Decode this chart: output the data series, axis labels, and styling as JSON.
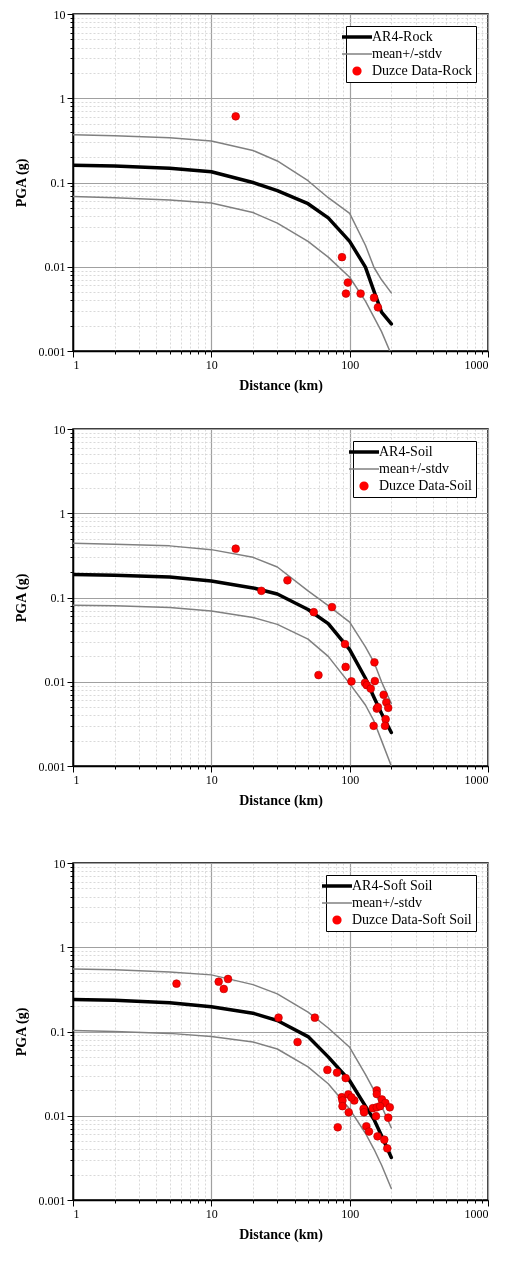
{
  "chart_data": [
    {
      "type": "scatter",
      "xlabel": "Distance (km)",
      "ylabel": "PGA (g)",
      "log": "xy",
      "grid": true,
      "legend": "top right",
      "xlim": [
        1,
        1000
      ],
      "ylim": [
        0.001,
        10
      ],
      "xticks": [
        1,
        {
          "value": 2,
          "label": null
        },
        {
          "value": 3,
          "label": null
        },
        {
          "value": 4,
          "label": null
        },
        {
          "value": 5,
          "label": null
        },
        {
          "value": 6,
          "label": null
        },
        {
          "value": 7,
          "label": null
        },
        {
          "value": 8,
          "label": null
        },
        {
          "value": 9,
          "label": null
        },
        10,
        {
          "value": 20,
          "label": null
        },
        {
          "value": 30,
          "label": null
        },
        {
          "value": 40,
          "label": null
        },
        {
          "value": 50,
          "label": null
        },
        {
          "value": 60,
          "label": null
        },
        {
          "value": 70,
          "label": null
        },
        {
          "value": 80,
          "label": null
        },
        {
          "value": 90,
          "label": null
        },
        100,
        {
          "value": 200,
          "label": null
        },
        {
          "value": 300,
          "label": null
        },
        {
          "value": 400,
          "label": null
        },
        {
          "value": 500,
          "label": null
        },
        {
          "value": 600,
          "label": null
        },
        {
          "value": 700,
          "label": null
        },
        {
          "value": 800,
          "label": null
        },
        {
          "value": 900,
          "label": null
        },
        1000
      ],
      "yticks": [
        0.001,
        {
          "value": 0.002,
          "label": null
        },
        {
          "value": 0.003,
          "label": null
        },
        {
          "value": 0.004,
          "label": null
        },
        {
          "value": 0.005,
          "label": null
        },
        {
          "value": 0.006,
          "label": null
        },
        {
          "value": 0.007,
          "label": null
        },
        {
          "value": 0.008,
          "label": null
        },
        {
          "value": 0.009,
          "label": null
        },
        0.01,
        {
          "value": 0.02,
          "label": null
        },
        {
          "value": 0.03,
          "label": null
        },
        {
          "value": 0.04,
          "label": null
        },
        {
          "value": 0.05,
          "label": null
        },
        {
          "value": 0.06,
          "label": null
        },
        {
          "value": 0.07,
          "label": null
        },
        {
          "value": 0.08,
          "label": null
        },
        {
          "value": 0.09,
          "label": null
        },
        0.1,
        {
          "value": 0.2,
          "label": null
        },
        {
          "value": 0.3,
          "label": null
        },
        {
          "value": 0.4,
          "label": null
        },
        {
          "value": 0.5,
          "label": null
        },
        {
          "value": 0.6,
          "label": null
        },
        {
          "value": 0.7,
          "label": null
        },
        {
          "value": 0.8,
          "label": null
        },
        {
          "value": 0.9,
          "label": null
        },
        1,
        {
          "value": 2,
          "label": null
        },
        {
          "value": 3,
          "label": null
        },
        {
          "value": 4,
          "label": null
        },
        {
          "value": 5,
          "label": null
        },
        {
          "value": 6,
          "label": null
        },
        {
          "value": 7,
          "label": null
        },
        {
          "value": 8,
          "label": null
        },
        {
          "value": 9,
          "label": null
        },
        10
      ],
      "series": [
        {
          "name": "AR4-Rock",
          "type": "line",
          "color": "#000000",
          "x": [
            1,
            2,
            5,
            10,
            20,
            30,
            50,
            70,
            100,
            130,
            150,
            170,
            200
          ],
          "values": [
            0.16,
            0.157,
            0.148,
            0.134,
            0.1,
            0.08,
            0.056,
            0.038,
            0.02,
            0.0099,
            0.0051,
            0.0029,
            0.0021
          ]
        },
        {
          "name": "mean+/-stdv",
          "type": "line",
          "color": "#808080",
          "x": [
            1,
            2,
            5,
            10,
            20,
            30,
            50,
            70,
            100,
            130,
            150,
            170,
            200
          ],
          "values": [
            0.37,
            0.36,
            0.34,
            0.31,
            0.24,
            0.18,
            0.105,
            0.066,
            0.043,
            0.018,
            0.0098,
            0.007,
            0.0049
          ]
        },
        {
          "type": "line",
          "color": "#808080",
          "x": [
            1,
            2,
            5,
            10,
            20,
            30,
            50,
            70,
            100,
            130,
            150,
            170,
            195
          ],
          "values": [
            0.068,
            0.066,
            0.062,
            0.057,
            0.044,
            0.033,
            0.02,
            0.013,
            0.0075,
            0.0039,
            0.0025,
            0.0017,
            0.001
          ]
        },
        {
          "name": "Duzce Data-Rock",
          "type": "scatter",
          "marker": "circle",
          "color": "#ff0000",
          "x": [
            15,
            88,
            97,
            94,
            120,
            150,
            160
          ],
          "values": [
            0.61,
            0.013,
            0.0065,
            0.0048,
            0.0048,
            0.0043,
            0.0033
          ]
        }
      ]
    },
    {
      "type": "scatter",
      "xlabel": "Distance (km)",
      "ylabel": "PGA (g)",
      "log": "xy",
      "grid": true,
      "legend": "top right",
      "xlim": [
        1,
        1000
      ],
      "ylim": [
        0.001,
        10
      ],
      "xticks": [
        1,
        {
          "value": 2,
          "label": null
        },
        {
          "value": 3,
          "label": null
        },
        {
          "value": 4,
          "label": null
        },
        {
          "value": 5,
          "label": null
        },
        {
          "value": 6,
          "label": null
        },
        {
          "value": 7,
          "label": null
        },
        {
          "value": 8,
          "label": null
        },
        {
          "value": 9,
          "label": null
        },
        10,
        {
          "value": 20,
          "label": null
        },
        {
          "value": 30,
          "label": null
        },
        {
          "value": 40,
          "label": null
        },
        {
          "value": 50,
          "label": null
        },
        {
          "value": 60,
          "label": null
        },
        {
          "value": 70,
          "label": null
        },
        {
          "value": 80,
          "label": null
        },
        {
          "value": 90,
          "label": null
        },
        100,
        {
          "value": 200,
          "label": null
        },
        {
          "value": 300,
          "label": null
        },
        {
          "value": 400,
          "label": null
        },
        {
          "value": 500,
          "label": null
        },
        {
          "value": 600,
          "label": null
        },
        {
          "value": 700,
          "label": null
        },
        {
          "value": 800,
          "label": null
        },
        {
          "value": 900,
          "label": null
        },
        1000
      ],
      "yticks": [
        0.001,
        {
          "value": 0.002,
          "label": null
        },
        {
          "value": 0.003,
          "label": null
        },
        {
          "value": 0.004,
          "label": null
        },
        {
          "value": 0.005,
          "label": null
        },
        {
          "value": 0.006,
          "label": null
        },
        {
          "value": 0.007,
          "label": null
        },
        {
          "value": 0.008,
          "label": null
        },
        {
          "value": 0.009,
          "label": null
        },
        0.01,
        {
          "value": 0.02,
          "label": null
        },
        {
          "value": 0.03,
          "label": null
        },
        {
          "value": 0.04,
          "label": null
        },
        {
          "value": 0.05,
          "label": null
        },
        {
          "value": 0.06,
          "label": null
        },
        {
          "value": 0.07,
          "label": null
        },
        {
          "value": 0.08,
          "label": null
        },
        {
          "value": 0.09,
          "label": null
        },
        0.1,
        {
          "value": 0.2,
          "label": null
        },
        {
          "value": 0.3,
          "label": null
        },
        {
          "value": 0.4,
          "label": null
        },
        {
          "value": 0.5,
          "label": null
        },
        {
          "value": 0.6,
          "label": null
        },
        {
          "value": 0.7,
          "label": null
        },
        {
          "value": 0.8,
          "label": null
        },
        {
          "value": 0.9,
          "label": null
        },
        1,
        {
          "value": 2,
          "label": null
        },
        {
          "value": 3,
          "label": null
        },
        {
          "value": 4,
          "label": null
        },
        {
          "value": 5,
          "label": null
        },
        {
          "value": 6,
          "label": null
        },
        {
          "value": 7,
          "label": null
        },
        {
          "value": 8,
          "label": null
        },
        {
          "value": 9,
          "label": null
        },
        10
      ],
      "series": [
        {
          "name": "AR4-Soil",
          "type": "line",
          "color": "#000000",
          "x": [
            1,
            2,
            5,
            10,
            20,
            30,
            50,
            70,
            100,
            130,
            150,
            170,
            200
          ],
          "values": [
            0.188,
            0.184,
            0.175,
            0.157,
            0.13,
            0.11,
            0.072,
            0.049,
            0.024,
            0.011,
            0.0065,
            0.0042,
            0.0025
          ]
        },
        {
          "name": "mean+/-stdv",
          "type": "line",
          "color": "#808080",
          "x": [
            1,
            2,
            5,
            10,
            20,
            30,
            50,
            70,
            100,
            130,
            150,
            170,
            200
          ],
          "values": [
            0.44,
            0.43,
            0.41,
            0.37,
            0.3,
            0.23,
            0.12,
            0.08,
            0.051,
            0.026,
            0.017,
            0.01,
            0.0055
          ]
        },
        {
          "type": "line",
          "color": "#808080",
          "x": [
            1,
            2,
            5,
            10,
            20,
            30,
            50,
            70,
            100,
            130,
            150,
            170,
            200
          ],
          "values": [
            0.081,
            0.08,
            0.076,
            0.069,
            0.058,
            0.048,
            0.032,
            0.02,
            0.0095,
            0.0053,
            0.0034,
            0.002,
            0.001
          ]
        },
        {
          "name": "Duzce Data-Soil",
          "type": "scatter",
          "marker": "circle",
          "color": "#ff0000",
          "x": [
            15,
            23,
            35.5,
            55,
            74.5,
            59.5,
            92.5,
            93.5,
            103,
            129,
            133,
            142,
            152,
            151,
            176,
            184,
            190,
            157,
            160,
            182,
            180,
            149
          ],
          "values": [
            0.38,
            0.12,
            0.16,
            0.067,
            0.077,
            0.012,
            0.028,
            0.015,
            0.0101,
            0.0097,
            0.0091,
            0.0083,
            0.0102,
            0.017,
            0.007,
            0.0057,
            0.0049,
            0.0048,
            0.005,
            0.0036,
            0.003,
            0.003
          ]
        }
      ]
    },
    {
      "type": "scatter",
      "xlabel": "Distance (km)",
      "ylabel": "PGA (g)",
      "log": "xy",
      "grid": true,
      "legend": "top right",
      "xlim": [
        1,
        1000
      ],
      "ylim": [
        0.001,
        10
      ],
      "xticks": [
        1,
        {
          "value": 2,
          "label": null
        },
        {
          "value": 3,
          "label": null
        },
        {
          "value": 4,
          "label": null
        },
        {
          "value": 5,
          "label": null
        },
        {
          "value": 6,
          "label": null
        },
        {
          "value": 7,
          "label": null
        },
        {
          "value": 8,
          "label": null
        },
        {
          "value": 9,
          "label": null
        },
        10,
        {
          "value": 20,
          "label": null
        },
        {
          "value": 30,
          "label": null
        },
        {
          "value": 40,
          "label": null
        },
        {
          "value": 50,
          "label": null
        },
        {
          "value": 60,
          "label": null
        },
        {
          "value": 70,
          "label": null
        },
        {
          "value": 80,
          "label": null
        },
        {
          "value": 90,
          "label": null
        },
        100,
        {
          "value": 200,
          "label": null
        },
        {
          "value": 300,
          "label": null
        },
        {
          "value": 400,
          "label": null
        },
        {
          "value": 500,
          "label": null
        },
        {
          "value": 600,
          "label": null
        },
        {
          "value": 700,
          "label": null
        },
        {
          "value": 800,
          "label": null
        },
        {
          "value": 900,
          "label": null
        },
        1000
      ],
      "yticks": [
        0.001,
        {
          "value": 0.002,
          "label": null
        },
        {
          "value": 0.003,
          "label": null
        },
        {
          "value": 0.004,
          "label": null
        },
        {
          "value": 0.005,
          "label": null
        },
        {
          "value": 0.006,
          "label": null
        },
        {
          "value": 0.007,
          "label": null
        },
        {
          "value": 0.008,
          "label": null
        },
        {
          "value": 0.009,
          "label": null
        },
        0.01,
        {
          "value": 0.02,
          "label": null
        },
        {
          "value": 0.03,
          "label": null
        },
        {
          "value": 0.04,
          "label": null
        },
        {
          "value": 0.05,
          "label": null
        },
        {
          "value": 0.06,
          "label": null
        },
        {
          "value": 0.07,
          "label": null
        },
        {
          "value": 0.08,
          "label": null
        },
        {
          "value": 0.09,
          "label": null
        },
        0.1,
        {
          "value": 0.2,
          "label": null
        },
        {
          "value": 0.3,
          "label": null
        },
        {
          "value": 0.4,
          "label": null
        },
        {
          "value": 0.5,
          "label": null
        },
        {
          "value": 0.6,
          "label": null
        },
        {
          "value": 0.7,
          "label": null
        },
        {
          "value": 0.8,
          "label": null
        },
        {
          "value": 0.9,
          "label": null
        },
        1,
        {
          "value": 2,
          "label": null
        },
        {
          "value": 3,
          "label": null
        },
        {
          "value": 4,
          "label": null
        },
        {
          "value": 5,
          "label": null
        },
        {
          "value": 6,
          "label": null
        },
        {
          "value": 7,
          "label": null
        },
        {
          "value": 8,
          "label": null
        },
        {
          "value": 9,
          "label": null
        },
        10
      ],
      "series": [
        {
          "name": "AR4-Soft Soil",
          "type": "line",
          "color": "#000000",
          "x": [
            1,
            2,
            5,
            10,
            20,
            30,
            50,
            70,
            100,
            130,
            150,
            170,
            200
          ],
          "values": [
            0.24,
            0.235,
            0.22,
            0.197,
            0.165,
            0.135,
            0.087,
            0.05,
            0.026,
            0.013,
            0.009,
            0.0058,
            0.0032
          ]
        },
        {
          "name": "mean+/-stdv",
          "type": "line",
          "color": "#808080",
          "x": [
            1,
            2,
            5,
            10,
            20,
            30,
            50,
            70,
            100,
            130,
            150,
            170,
            200
          ],
          "values": [
            0.55,
            0.54,
            0.51,
            0.47,
            0.36,
            0.28,
            0.17,
            0.11,
            0.065,
            0.031,
            0.02,
            0.013,
            0.0072
          ]
        },
        {
          "type": "line",
          "color": "#808080",
          "x": [
            1,
            2,
            5,
            10,
            20,
            30,
            50,
            70,
            100,
            130,
            150,
            170,
            200
          ],
          "values": [
            0.103,
            0.1,
            0.095,
            0.087,
            0.075,
            0.062,
            0.038,
            0.024,
            0.012,
            0.0062,
            0.004,
            0.0026,
            0.00137
          ]
        },
        {
          "name": "Duzce Data-Soft Soil",
          "type": "scatter",
          "marker": "circle",
          "color": "#ff0000",
          "x": [
            5.6,
            11.3,
            13.2,
            12.3,
            30.6,
            56,
            42,
            69,
            81,
            93.6,
            87.7,
            88.7,
            97.9,
            88.7,
            108,
            103,
            98.4,
            82,
            126,
            127,
            132,
            138,
            147,
            157,
            155,
            157,
            157,
            171,
            181,
            166,
            195,
            190,
            159,
            178,
            187
          ],
          "values": [
            0.37,
            0.39,
            0.42,
            0.32,
            0.146,
            0.146,
            0.075,
            0.035,
            0.0325,
            0.028,
            0.0166,
            0.0152,
            0.0179,
            0.013,
            0.0152,
            0.0165,
            0.011,
            0.0073,
            0.0121,
            0.011,
            0.0075,
            0.0065,
            0.0123,
            0.0126,
            0.0099,
            0.02,
            0.0181,
            0.0156,
            0.0142,
            0.013,
            0.0126,
            0.0095,
            0.0057,
            0.0052,
            0.0041
          ]
        }
      ]
    }
  ]
}
